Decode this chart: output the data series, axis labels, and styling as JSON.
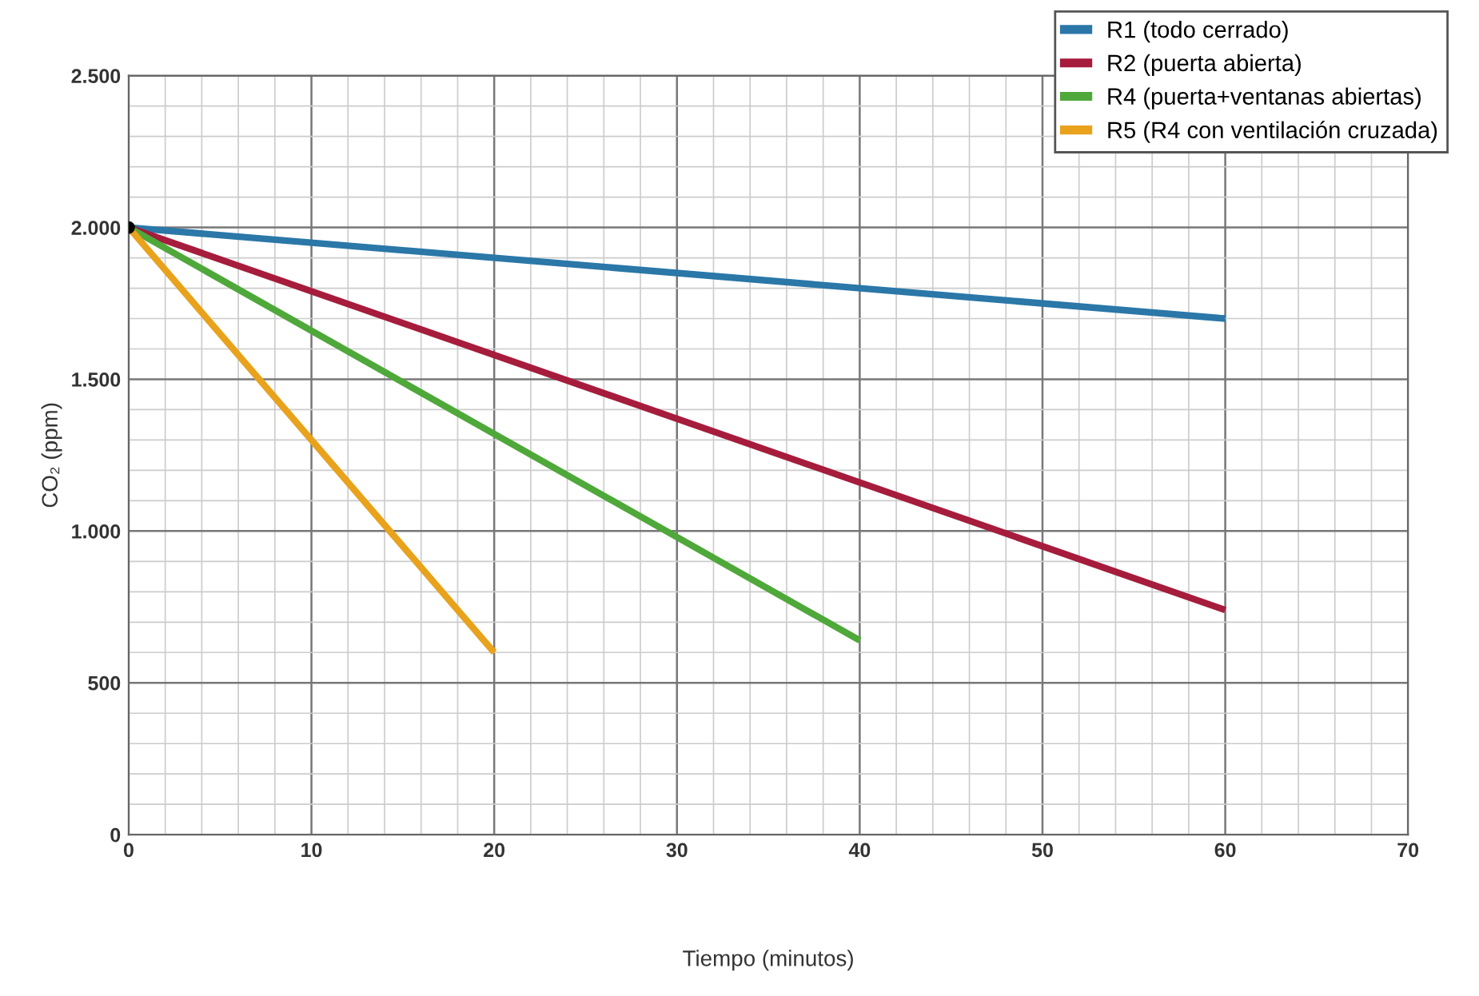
{
  "chart_data": {
    "type": "line",
    "xlabel": "Tiempo (minutos)",
    "ylabel": "CO₂ (ppm)",
    "series": [
      {
        "name": "R1 (todo cerrado)",
        "color": "#2a77a8",
        "x": [
          0,
          60
        ],
        "values": [
          2000,
          1700
        ]
      },
      {
        "name": "R2 (puerta abierta)",
        "color": "#a61c3c",
        "x": [
          0,
          60
        ],
        "values": [
          2000,
          740
        ]
      },
      {
        "name": "R4 (puerta+ventanas abiertas)",
        "color": "#4fa83a",
        "x": [
          0,
          40
        ],
        "values": [
          2000,
          640
        ]
      },
      {
        "name": "R5 (R4 con ventilación cruzada)",
        "color": "#e8a21c",
        "x": [
          0,
          20
        ],
        "values": [
          2000,
          600
        ]
      },
      {
        "type": "scatter",
        "color": "#000000",
        "x": [
          0
        ],
        "values": [
          2000
        ],
        "marker": "circle"
      }
    ],
    "xlim": [
      0,
      70
    ],
    "ylim": [
      0,
      2500
    ],
    "xticks": [
      0,
      {
        "value": 2,
        "label": null
      },
      {
        "value": 4,
        "label": null
      },
      {
        "value": 6,
        "label": null
      },
      {
        "value": 8,
        "label": null
      },
      10,
      {
        "value": 12,
        "label": null
      },
      {
        "value": 14,
        "label": null
      },
      {
        "value": 16,
        "label": null
      },
      {
        "value": 18,
        "label": null
      },
      20,
      {
        "value": 22,
        "label": null
      },
      {
        "value": 24,
        "label": null
      },
      {
        "value": 26,
        "label": null
      },
      {
        "value": 28,
        "label": null
      },
      30,
      {
        "value": 32,
        "label": null
      },
      {
        "value": 34,
        "label": null
      },
      {
        "value": 36,
        "label": null
      },
      {
        "value": 38,
        "label": null
      },
      40,
      {
        "value": 42,
        "label": null
      },
      {
        "value": 44,
        "label": null
      },
      {
        "value": 46,
        "label": null
      },
      {
        "value": 48,
        "label": null
      },
      50,
      {
        "value": 52,
        "label": null
      },
      {
        "value": 54,
        "label": null
      },
      {
        "value": 56,
        "label": null
      },
      {
        "value": 58,
        "label": null
      },
      60,
      {
        "value": 62,
        "label": null
      },
      {
        "value": 64,
        "label": null
      },
      {
        "value": 66,
        "label": null
      },
      {
        "value": 68,
        "label": null
      },
      70
    ],
    "yticks": [
      {
        "value": 0,
        "label": "0"
      },
      {
        "value": 100,
        "label": null
      },
      {
        "value": 200,
        "label": null
      },
      {
        "value": 300,
        "label": null
      },
      {
        "value": 400,
        "label": null
      },
      {
        "value": 500,
        "label": "500"
      },
      {
        "value": 600,
        "label": null
      },
      {
        "value": 700,
        "label": null
      },
      {
        "value": 800,
        "label": null
      },
      {
        "value": 900,
        "label": null
      },
      {
        "value": 1000,
        "label": "1.000"
      },
      {
        "value": 1100,
        "label": null
      },
      {
        "value": 1200,
        "label": null
      },
      {
        "value": 1300,
        "label": null
      },
      {
        "value": 1400,
        "label": null
      },
      {
        "value": 1500,
        "label": "1.500"
      },
      {
        "value": 1600,
        "label": null
      },
      {
        "value": 1700,
        "label": null
      },
      {
        "value": 1800,
        "label": null
      },
      {
        "value": 1900,
        "label": null
      },
      {
        "value": 2000,
        "label": "2.000"
      },
      {
        "value": 2100,
        "label": null
      },
      {
        "value": 2200,
        "label": null
      },
      {
        "value": 2300,
        "label": null
      },
      {
        "value": 2400,
        "label": null
      },
      {
        "value": 2500,
        "label": "2.500"
      }
    ],
    "grid": true,
    "legend": "top right",
    "line_style": "solid"
  }
}
